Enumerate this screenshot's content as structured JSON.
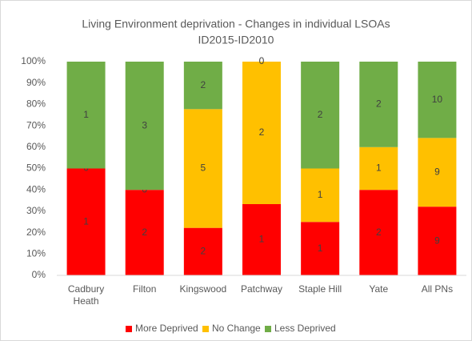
{
  "chart_data": {
    "type": "bar",
    "stacked": "percent",
    "title": "Living Environment deprivation - Changes in individual LSOAs",
    "subtitle": "ID2015-ID2010",
    "categories": [
      "Cadbury Heath",
      "Filton",
      "Kingswood",
      "Patchway",
      "Staple Hill",
      "Yate",
      "All PNs"
    ],
    "series": [
      {
        "name": "More Deprived",
        "color": "#ff0000",
        "values": [
          1,
          2,
          2,
          1,
          1,
          2,
          9
        ]
      },
      {
        "name": "No Change",
        "color": "#ffc000",
        "values": [
          0,
          0,
          5,
          2,
          1,
          1,
          9
        ]
      },
      {
        "name": "Less Deprived",
        "color": "#70ad47",
        "values": [
          1,
          3,
          2,
          0,
          2,
          2,
          10
        ]
      }
    ],
    "ylim": [
      0,
      100
    ],
    "yticks": [
      {
        "value": 0,
        "label": "0%"
      },
      {
        "value": 10,
        "label": "10%"
      },
      {
        "value": 20,
        "label": "20%"
      },
      {
        "value": 30,
        "label": "30%"
      },
      {
        "value": 40,
        "label": "40%"
      },
      {
        "value": 50,
        "label": "50%"
      },
      {
        "value": 60,
        "label": "60%"
      },
      {
        "value": 70,
        "label": "70%"
      },
      {
        "value": 80,
        "label": "80%"
      },
      {
        "value": 90,
        "label": "90%"
      },
      {
        "value": 100,
        "label": "100%"
      }
    ],
    "legend": "bottom"
  }
}
